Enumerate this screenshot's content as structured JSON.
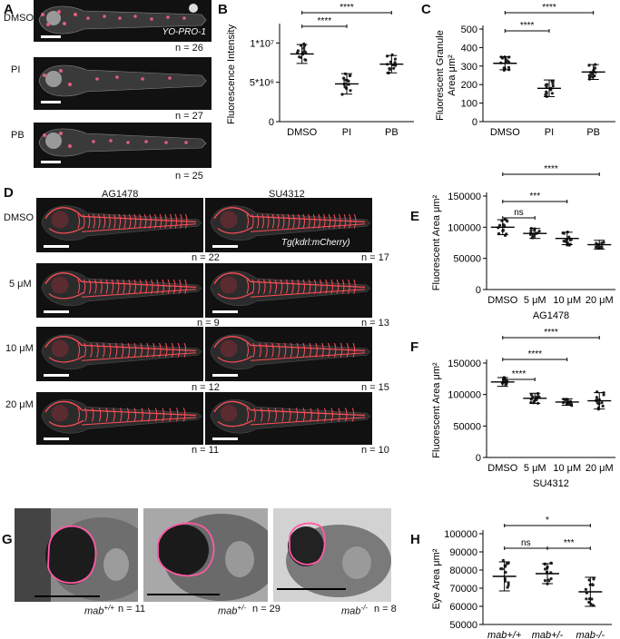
{
  "panelA": {
    "letter": "A",
    "rows": [
      {
        "label": "DMSO",
        "n": "n = 26"
      },
      {
        "label": "PI",
        "n": "n = 27"
      },
      {
        "label": "PB",
        "n": "n = 25"
      }
    ],
    "stain": "YO-PRO-1"
  },
  "panelD": {
    "letter": "D",
    "col1": "AG1478",
    "col2": "SU4312",
    "transgene": "Tg(kdrl:mCherry)",
    "rows": [
      {
        "label": "DMSO",
        "n1": "n = 22",
        "n2": "n = 17"
      },
      {
        "label": "5 μM",
        "n1": "n = 9",
        "n2": "n = 13"
      },
      {
        "label": "10 μM",
        "n1": "n = 12",
        "n2": "n = 15"
      },
      {
        "label": "20 μM",
        "n1": "n = 11",
        "n2": "n = 10"
      }
    ]
  },
  "panelG": {
    "letter": "G",
    "images": [
      {
        "genotype": "mab",
        "sup": "+/+",
        "n": "n = 11"
      },
      {
        "genotype": "mab",
        "sup": "+/-",
        "n": "n = 29"
      },
      {
        "genotype": "mab",
        "sup": "-/-",
        "n": "n = 8"
      }
    ]
  },
  "chart_data": [
    {
      "panel": "B",
      "type": "scatter",
      "ylabel": "Fluorescence Intensity",
      "categories": [
        "DMSO",
        "PI",
        "PB"
      ],
      "ylim": [
        0,
        12000000
      ],
      "ytick_labels": [
        "0",
        "5*10⁶",
        "1*10⁷"
      ],
      "means": [
        8600000,
        4800000,
        7300000
      ],
      "sd": [
        1200000,
        1300000,
        1100000
      ],
      "significance": [
        {
          "from": "DMSO",
          "to": "PI",
          "label": "****"
        },
        {
          "from": "DMSO",
          "to": "PB",
          "label": "****"
        }
      ]
    },
    {
      "panel": "C",
      "type": "scatter",
      "ylabel": "Fluorescent Granule Area μm²",
      "categories": [
        "DMSO",
        "PI",
        "PB"
      ],
      "ylim": [
        0,
        500
      ],
      "yticks": [
        0,
        100,
        200,
        300,
        400,
        500
      ],
      "means": [
        315,
        180,
        268
      ],
      "sd": [
        35,
        45,
        40
      ],
      "significance": [
        {
          "from": "DMSO",
          "to": "PI",
          "label": "****"
        },
        {
          "from": "DMSO",
          "to": "PB",
          "label": "****"
        }
      ]
    },
    {
      "panel": "E",
      "type": "scatter",
      "ylabel": "Fluorescent Area μm²",
      "xlabel": "AG1478",
      "categories": [
        "DMSO",
        "5 μM",
        "10 μM",
        "20 μM"
      ],
      "ylim": [
        0,
        150000
      ],
      "yticks": [
        0,
        50000,
        100000,
        150000
      ],
      "means": [
        100000,
        90000,
        82000,
        72000
      ],
      "sd": [
        12000,
        8000,
        10000,
        7000
      ],
      "significance": [
        {
          "from": "DMSO",
          "to": "5 μM",
          "label": "ns"
        },
        {
          "from": "DMSO",
          "to": "10 μM",
          "label": "***"
        },
        {
          "from": "DMSO",
          "to": "20 μM",
          "label": "****"
        }
      ]
    },
    {
      "panel": "F",
      "type": "scatter",
      "ylabel": "Fluorescent Area μm²",
      "xlabel": "SU4312",
      "categories": [
        "DMSO",
        "5 μM",
        "10 μM",
        "20 μM"
      ],
      "ylim": [
        0,
        150000
      ],
      "yticks": [
        0,
        50000,
        100000,
        150000
      ],
      "means": [
        120000,
        94000,
        88000,
        90000
      ],
      "sd": [
        7000,
        8000,
        5000,
        13000
      ],
      "significance": [
        {
          "from": "DMSO",
          "to": "5 μM",
          "label": "****"
        },
        {
          "from": "DMSO",
          "to": "10 μM",
          "label": "****"
        },
        {
          "from": "DMSO",
          "to": "20 μM",
          "label": "****"
        }
      ]
    },
    {
      "panel": "H",
      "type": "scatter",
      "ylabel": "Eye Area μm²",
      "categories": [
        "mab+/+",
        "mab+/-",
        "mab-/-"
      ],
      "ylim": [
        50000,
        100000
      ],
      "yticks": [
        50000,
        60000,
        70000,
        80000,
        90000,
        100000
      ],
      "means": [
        76500,
        78000,
        68000
      ],
      "sd": [
        8000,
        5500,
        8000
      ],
      "significance": [
        {
          "from": "mab+/+",
          "to": "mab-/-",
          "label": "*"
        },
        {
          "from": "mab+/+",
          "to": "mab+/-",
          "label": "ns"
        },
        {
          "from": "mab+/-",
          "to": "mab-/-",
          "label": "***"
        }
      ]
    }
  ]
}
